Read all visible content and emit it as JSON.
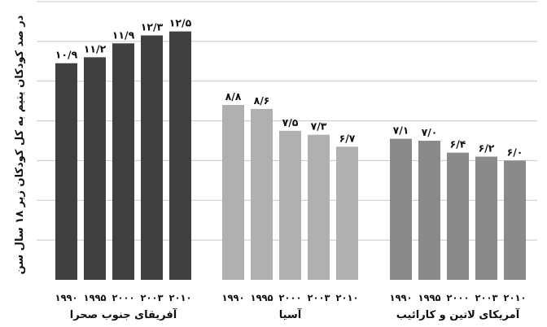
{
  "chart_data": {
    "type": "bar",
    "ylabel": "در صد کودکان یتیم به کل کودکان زیر ۱۸ سال سن",
    "ylim": [
      0,
      14
    ],
    "grid": true,
    "groups": [
      {
        "name": "آفریقای جنوب صحرا",
        "color": "#404040",
        "categories": [
          "۱۹۹۰",
          "۱۹۹۵",
          "۲۰۰۰",
          "۲۰۰۳",
          "۲۰۱۰"
        ],
        "values": [
          10.9,
          11.2,
          11.9,
          12.3,
          12.5
        ],
        "value_labels": [
          "۱۰/۹",
          "۱۱/۲",
          "۱۱/۹",
          "۱۲/۳",
          "۱۲/۵"
        ]
      },
      {
        "name": "آسیا",
        "color": "#b0b0b0",
        "categories": [
          "۱۹۹۰",
          "۱۹۹۵",
          "۲۰۰۰",
          "۲۰۰۳",
          "۲۰۱۰"
        ],
        "values": [
          8.8,
          8.6,
          7.5,
          7.3,
          6.7
        ],
        "value_labels": [
          "۸/۸",
          "۸/۶",
          "۷/۵",
          "۷/۳",
          "۶/۷"
        ]
      },
      {
        "name": "آمریکای لاتین و کارائیب",
        "color": "#8a8a8a",
        "categories": [
          "۱۹۹۰",
          "۱۹۹۵",
          "۲۰۰۰",
          "۲۰۰۳",
          "۲۰۱۰"
        ],
        "values": [
          7.1,
          7.0,
          6.4,
          6.2,
          6.0
        ],
        "value_labels": [
          "۷/۱",
          "۷/۰",
          "۶/۴",
          "۶/۲",
          "۶/۰"
        ]
      }
    ]
  }
}
